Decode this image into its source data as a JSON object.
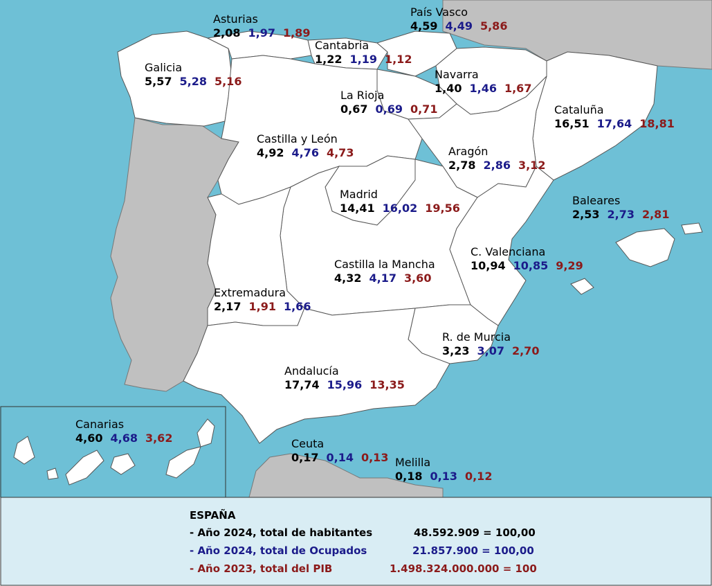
{
  "colors": {
    "sea": "#6ec0d6",
    "land_foreign": "#c0c0c0",
    "region": "#ffffff",
    "border": "#555555",
    "legend_bg": "#d9edf4",
    "habitantes": "#000000",
    "ocupados": "#1b1b8a",
    "pib": "#8b1a1a"
  },
  "regions": [
    {
      "name": "Asturias",
      "habitantes": "2,08",
      "ocupados": "1,97",
      "pib": "1,89"
    },
    {
      "name": "País Vasco",
      "habitantes": "4,59",
      "ocupados": "4,49",
      "pib": "5,86"
    },
    {
      "name": "Cantabria",
      "habitantes": "1,22",
      "ocupados": "1,19",
      "pib": "1,12"
    },
    {
      "name": "Galicia",
      "habitantes": "5,57",
      "ocupados": "5,28",
      "pib": "5,16"
    },
    {
      "name": "Navarra",
      "habitantes": "1,40",
      "ocupados": "1,46",
      "pib": "1,67"
    },
    {
      "name": "La Rioja",
      "habitantes": "0,67",
      "ocupados": "0,69",
      "pib": "0,71"
    },
    {
      "name": "Cataluña",
      "habitantes": "16,51",
      "ocupados": "17,64",
      "pib": "18,81"
    },
    {
      "name": "Castilla y León",
      "habitantes": "4,92",
      "ocupados": "4,76",
      "pib": "4,73"
    },
    {
      "name": "Aragón",
      "habitantes": "2,78",
      "ocupados": "2,86",
      "pib": "3,12"
    },
    {
      "name": "Madrid",
      "habitantes": "14,41",
      "ocupados": "16,02",
      "pib": "19,56"
    },
    {
      "name": "Baleares",
      "habitantes": "2,53",
      "ocupados": "2,73",
      "pib": "2,81"
    },
    {
      "name": "C. Valenciana",
      "habitantes": "10,94",
      "ocupados": "10,85",
      "pib": "9,29"
    },
    {
      "name": "Castilla la Mancha",
      "habitantes": "4,32",
      "ocupados": "4,17",
      "pib": "3,60"
    },
    {
      "name": "Extremadura",
      "habitantes": "2,17",
      "ocupados": "1,91",
      "pib": "1,66"
    },
    {
      "name": "R. de Murcia",
      "habitantes": "3,23",
      "ocupados": "3,07",
      "pib": "2,70"
    },
    {
      "name": "Andalucía",
      "habitantes": "17,74",
      "ocupados": "15,96",
      "pib": "13,35"
    },
    {
      "name": "Canarias",
      "habitantes": "4,60",
      "ocupados": "4,68",
      "pib": "3,62"
    },
    {
      "name": "Ceuta",
      "habitantes": "0,17",
      "ocupados": "0,14",
      "pib": "0,13"
    },
    {
      "name": "Melilla",
      "habitantes": "0,18",
      "ocupados": "0,13",
      "pib": "0,12"
    }
  ],
  "legend": {
    "title": "ESPAÑA",
    "rows": [
      {
        "label": "- Año 2024, total de habitantes",
        "value": "48.592.909 = 100,00"
      },
      {
        "label": "- Año 2024, total de Ocupados",
        "value": "21.857.900 = 100,00"
      },
      {
        "label": "- Año 2023, total del PIB",
        "value": "1.498.324.000.000 = 100"
      }
    ]
  }
}
